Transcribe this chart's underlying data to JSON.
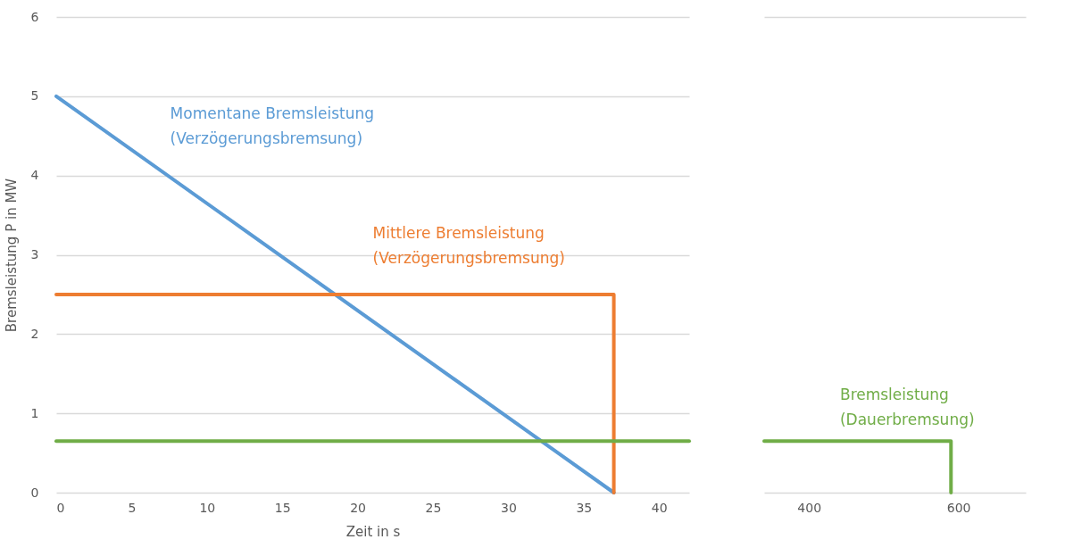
{
  "chart_data": [
    {
      "type": "line",
      "xlabel": "Zeit in s",
      "ylabel": "Bremsleistung P in MW",
      "xlim": [
        0,
        42
      ],
      "xticks": [
        0,
        5,
        10,
        15,
        20,
        25,
        30,
        35,
        40
      ],
      "ylim": [
        0,
        6
      ],
      "yticks": [
        0,
        1,
        2,
        3,
        4,
        5,
        6
      ],
      "grid": "y",
      "series": [
        {
          "x": [
            0,
            37
          ],
          "values": [
            5,
            0
          ],
          "color": "#5b9bd5"
        },
        {
          "x": [
            0,
            37,
            37
          ],
          "values": [
            2.5,
            2.5,
            0
          ],
          "color": "#ed7d31"
        },
        {
          "x": [
            0,
            42
          ],
          "values": [
            0.65,
            0.65
          ],
          "color": "#70ad47"
        }
      ],
      "annotations": [
        "Momentane Bremsleistung\n(Verzögerungsbremsung)",
        "Mittlere Bremsleistung\n(Verzögerungsbremsung)"
      ]
    },
    {
      "type": "line",
      "xlim": [
        340,
        690
      ],
      "xticks": [
        400,
        600
      ],
      "ylim": [
        0,
        6
      ],
      "grid": "y",
      "tick_labels": "x",
      "series": [
        {
          "x": [
            340,
            590,
            590
          ],
          "values": [
            0.65,
            0.65,
            0
          ],
          "color": "#70ad47"
        }
      ],
      "annotations": [
        "Bremsleistung\n(Dauerbremsung)"
      ]
    }
  ]
}
